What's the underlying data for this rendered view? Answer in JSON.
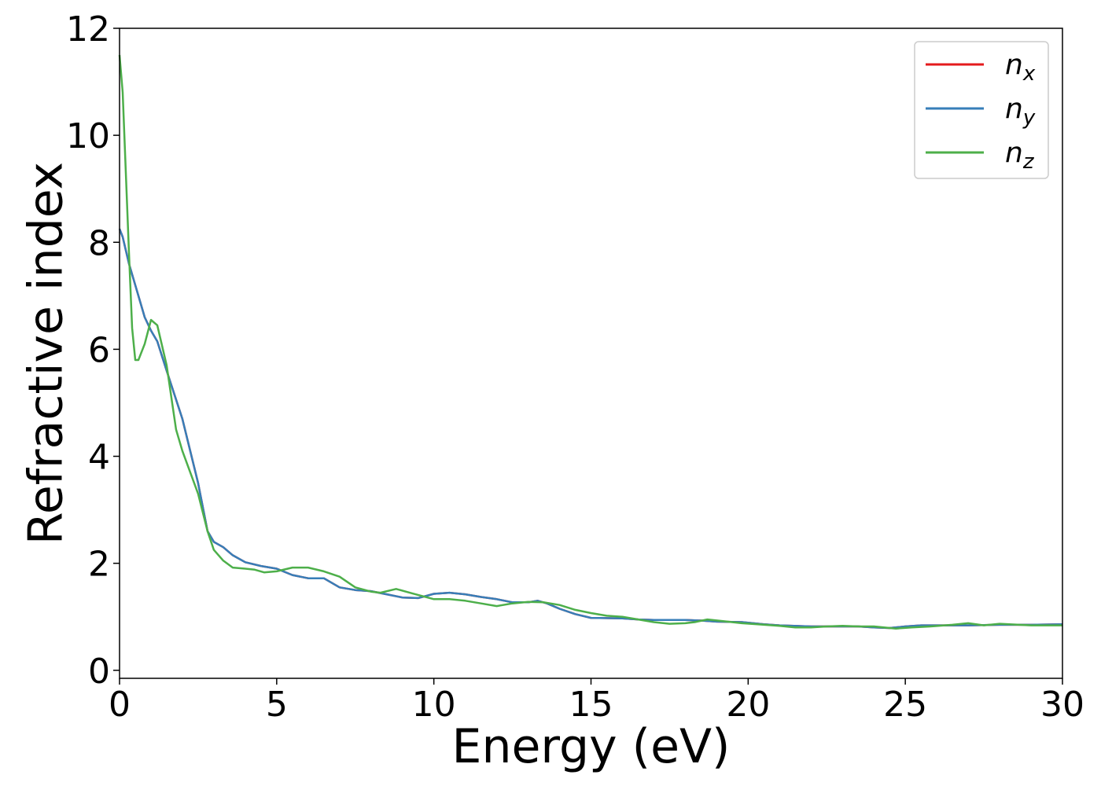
{
  "chart_data": {
    "type": "line",
    "title": "",
    "xlabel": "Energy (eV)",
    "ylabel": "Refractive index",
    "xlim": [
      0,
      30
    ],
    "ylim": [
      -0.15,
      12
    ],
    "xticks": [
      0,
      5,
      10,
      15,
      20,
      25,
      30
    ],
    "yticks": [
      0,
      2,
      4,
      6,
      8,
      10,
      12
    ],
    "grid": false,
    "legend_position": "top-right",
    "series": [
      {
        "name": "n",
        "subscript": "x",
        "color": "#e41a1c",
        "points": [
          [
            0,
            8.25
          ],
          [
            0.1,
            8.1
          ],
          [
            0.3,
            7.6
          ],
          [
            0.6,
            7.0
          ],
          [
            0.8,
            6.6
          ],
          [
            1.0,
            6.35
          ],
          [
            1.2,
            6.15
          ],
          [
            1.5,
            5.6
          ],
          [
            2.0,
            4.7
          ],
          [
            2.5,
            3.5
          ],
          [
            2.8,
            2.6
          ],
          [
            3.0,
            2.4
          ],
          [
            3.3,
            2.3
          ],
          [
            3.6,
            2.15
          ],
          [
            4.0,
            2.02
          ],
          [
            4.5,
            1.95
          ],
          [
            5.0,
            1.9
          ],
          [
            5.5,
            1.78
          ],
          [
            6.0,
            1.72
          ],
          [
            6.5,
            1.72
          ],
          [
            7.0,
            1.55
          ],
          [
            7.5,
            1.5
          ],
          [
            8.0,
            1.48
          ],
          [
            8.5,
            1.42
          ],
          [
            9.0,
            1.36
          ],
          [
            9.5,
            1.35
          ],
          [
            10.0,
            1.43
          ],
          [
            10.5,
            1.45
          ],
          [
            11.0,
            1.42
          ],
          [
            11.5,
            1.37
          ],
          [
            12.0,
            1.33
          ],
          [
            12.5,
            1.27
          ],
          [
            13.0,
            1.27
          ],
          [
            13.3,
            1.3
          ],
          [
            13.6,
            1.25
          ],
          [
            14.0,
            1.15
          ],
          [
            14.5,
            1.05
          ],
          [
            15.0,
            0.98
          ],
          [
            16.0,
            0.97
          ],
          [
            16.5,
            0.95
          ],
          [
            17.0,
            0.94
          ],
          [
            18.0,
            0.94
          ],
          [
            18.5,
            0.93
          ],
          [
            19.0,
            0.91
          ],
          [
            19.8,
            0.9
          ],
          [
            20.5,
            0.86
          ],
          [
            21.0,
            0.84
          ],
          [
            22.0,
            0.82
          ],
          [
            23.0,
            0.82
          ],
          [
            23.5,
            0.82
          ],
          [
            24.0,
            0.8
          ],
          [
            24.5,
            0.79
          ],
          [
            25.0,
            0.82
          ],
          [
            25.5,
            0.84
          ],
          [
            26.0,
            0.84
          ],
          [
            27.0,
            0.84
          ],
          [
            28.0,
            0.85
          ],
          [
            29.0,
            0.85
          ],
          [
            30.0,
            0.86
          ]
        ]
      },
      {
        "name": "n",
        "subscript": "y",
        "color": "#377eb8",
        "points": [
          [
            0,
            8.25
          ],
          [
            0.1,
            8.1
          ],
          [
            0.3,
            7.6
          ],
          [
            0.6,
            7.0
          ],
          [
            0.8,
            6.6
          ],
          [
            1.0,
            6.35
          ],
          [
            1.2,
            6.15
          ],
          [
            1.5,
            5.6
          ],
          [
            2.0,
            4.7
          ],
          [
            2.5,
            3.5
          ],
          [
            2.8,
            2.6
          ],
          [
            3.0,
            2.4
          ],
          [
            3.3,
            2.3
          ],
          [
            3.6,
            2.15
          ],
          [
            4.0,
            2.02
          ],
          [
            4.5,
            1.95
          ],
          [
            5.0,
            1.9
          ],
          [
            5.5,
            1.78
          ],
          [
            6.0,
            1.72
          ],
          [
            6.5,
            1.72
          ],
          [
            7.0,
            1.55
          ],
          [
            7.5,
            1.5
          ],
          [
            8.0,
            1.48
          ],
          [
            8.5,
            1.42
          ],
          [
            9.0,
            1.36
          ],
          [
            9.5,
            1.35
          ],
          [
            10.0,
            1.43
          ],
          [
            10.5,
            1.45
          ],
          [
            11.0,
            1.42
          ],
          [
            11.5,
            1.37
          ],
          [
            12.0,
            1.33
          ],
          [
            12.5,
            1.27
          ],
          [
            13.0,
            1.27
          ],
          [
            13.3,
            1.3
          ],
          [
            13.6,
            1.25
          ],
          [
            14.0,
            1.15
          ],
          [
            14.5,
            1.05
          ],
          [
            15.0,
            0.98
          ],
          [
            16.0,
            0.97
          ],
          [
            16.5,
            0.95
          ],
          [
            17.0,
            0.94
          ],
          [
            18.0,
            0.94
          ],
          [
            18.5,
            0.93
          ],
          [
            19.0,
            0.91
          ],
          [
            19.8,
            0.9
          ],
          [
            20.5,
            0.86
          ],
          [
            21.0,
            0.84
          ],
          [
            22.0,
            0.82
          ],
          [
            23.0,
            0.82
          ],
          [
            23.5,
            0.82
          ],
          [
            24.0,
            0.8
          ],
          [
            24.5,
            0.79
          ],
          [
            25.0,
            0.82
          ],
          [
            25.5,
            0.84
          ],
          [
            26.0,
            0.84
          ],
          [
            27.0,
            0.84
          ],
          [
            28.0,
            0.85
          ],
          [
            29.0,
            0.85
          ],
          [
            30.0,
            0.86
          ]
        ]
      },
      {
        "name": "n",
        "subscript": "z",
        "color": "#4daf4a",
        "points": [
          [
            0,
            11.5
          ],
          [
            0.1,
            10.8
          ],
          [
            0.2,
            9.3
          ],
          [
            0.3,
            7.8
          ],
          [
            0.4,
            6.4
          ],
          [
            0.5,
            5.8
          ],
          [
            0.6,
            5.8
          ],
          [
            0.8,
            6.1
          ],
          [
            1.0,
            6.55
          ],
          [
            1.2,
            6.45
          ],
          [
            1.5,
            5.7
          ],
          [
            1.8,
            4.5
          ],
          [
            2.0,
            4.1
          ],
          [
            2.5,
            3.3
          ],
          [
            2.8,
            2.6
          ],
          [
            3.0,
            2.25
          ],
          [
            3.3,
            2.05
          ],
          [
            3.6,
            1.92
          ],
          [
            4.0,
            1.9
          ],
          [
            4.3,
            1.88
          ],
          [
            4.6,
            1.83
          ],
          [
            5.0,
            1.85
          ],
          [
            5.5,
            1.92
          ],
          [
            6.0,
            1.92
          ],
          [
            6.5,
            1.85
          ],
          [
            7.0,
            1.75
          ],
          [
            7.5,
            1.55
          ],
          [
            8.0,
            1.47
          ],
          [
            8.3,
            1.45
          ],
          [
            8.8,
            1.52
          ],
          [
            9.3,
            1.44
          ],
          [
            10.0,
            1.33
          ],
          [
            10.5,
            1.33
          ],
          [
            11.0,
            1.3
          ],
          [
            11.5,
            1.25
          ],
          [
            12.0,
            1.2
          ],
          [
            12.5,
            1.25
          ],
          [
            13.0,
            1.28
          ],
          [
            13.5,
            1.27
          ],
          [
            14.0,
            1.22
          ],
          [
            14.5,
            1.13
          ],
          [
            15.0,
            1.07
          ],
          [
            15.5,
            1.02
          ],
          [
            16.0,
            1.0
          ],
          [
            16.5,
            0.95
          ],
          [
            17.0,
            0.9
          ],
          [
            17.5,
            0.87
          ],
          [
            18.0,
            0.88
          ],
          [
            18.3,
            0.9
          ],
          [
            18.7,
            0.95
          ],
          [
            19.2,
            0.92
          ],
          [
            19.8,
            0.88
          ],
          [
            20.3,
            0.86
          ],
          [
            21.0,
            0.83
          ],
          [
            21.5,
            0.8
          ],
          [
            22.0,
            0.8
          ],
          [
            22.5,
            0.82
          ],
          [
            23.0,
            0.83
          ],
          [
            23.5,
            0.82
          ],
          [
            24.0,
            0.82
          ],
          [
            24.7,
            0.78
          ],
          [
            25.2,
            0.8
          ],
          [
            25.8,
            0.82
          ],
          [
            26.5,
            0.85
          ],
          [
            27.0,
            0.88
          ],
          [
            27.5,
            0.84
          ],
          [
            28.0,
            0.87
          ],
          [
            29.0,
            0.84
          ],
          [
            30.0,
            0.84
          ]
        ]
      }
    ]
  }
}
